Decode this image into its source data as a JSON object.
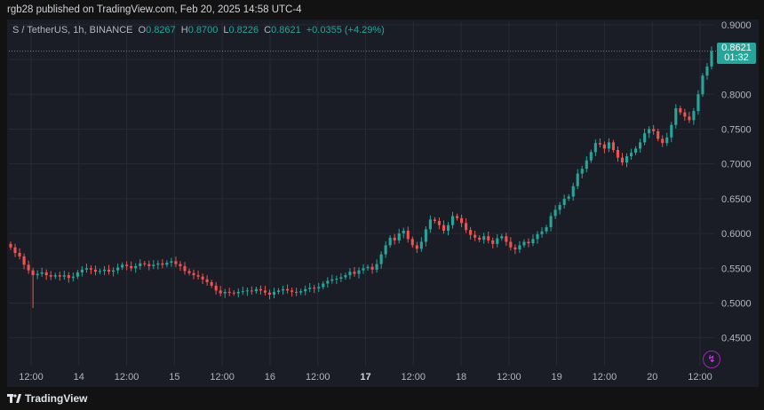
{
  "header": {
    "published": "rgb28 published on TradingView.com, Feb 20, 2025 14:58 UTC-4"
  },
  "legend": {
    "symbol": "S / TetherUS, 1h, BINANCE",
    "o_label": "O",
    "o_value": "0.8267",
    "h_label": "H",
    "h_value": "0.8700",
    "l_label": "L",
    "l_value": "0.8226",
    "c_label": "C",
    "c_value": "0.8621",
    "change": "+0.0355 (+4.29%)"
  },
  "price_tag": {
    "price": "0.8621",
    "countdown": "01:32"
  },
  "footer": {
    "brand": "TradingView"
  },
  "colors": {
    "up": "#26a69a",
    "down": "#ef5350",
    "background": "#1a1d26",
    "grid": "#262a35",
    "text": "#b2b5be"
  },
  "chart_data": {
    "type": "candlestick",
    "ylim": [
      0.41,
      0.905
    ],
    "yticks": [
      "0.9000",
      "0.8500",
      "0.8000",
      "0.7500",
      "0.7000",
      "0.6500",
      "0.6000",
      "0.5500",
      "0.5000",
      "0.4500"
    ],
    "xticks": [
      "12:00",
      "14",
      "12:00",
      "15",
      "12:00",
      "16",
      "12:00",
      "17",
      "12:00",
      "18",
      "12:00",
      "19",
      "12:00",
      "20",
      "12:00"
    ],
    "last_price": 0.8621,
    "closes": [
      0.58,
      0.572,
      0.567,
      0.555,
      0.547,
      0.54,
      0.542,
      0.544,
      0.54,
      0.538,
      0.54,
      0.538,
      0.54,
      0.536,
      0.538,
      0.544,
      0.548,
      0.55,
      0.548,
      0.545,
      0.546,
      0.548,
      0.545,
      0.547,
      0.551,
      0.555,
      0.553,
      0.55,
      0.553,
      0.557,
      0.556,
      0.553,
      0.555,
      0.557,
      0.555,
      0.558,
      0.56,
      0.556,
      0.553,
      0.546,
      0.543,
      0.54,
      0.538,
      0.534,
      0.53,
      0.525,
      0.518,
      0.514,
      0.516,
      0.515,
      0.514,
      0.516,
      0.517,
      0.518,
      0.517,
      0.52,
      0.518,
      0.515,
      0.512,
      0.516,
      0.518,
      0.52,
      0.518,
      0.516,
      0.515,
      0.517,
      0.52,
      0.522,
      0.521,
      0.523,
      0.528,
      0.532,
      0.534,
      0.535,
      0.537,
      0.54,
      0.545,
      0.542,
      0.547,
      0.55,
      0.552,
      0.548,
      0.556,
      0.57,
      0.583,
      0.594,
      0.59,
      0.6,
      0.604,
      0.592,
      0.583,
      0.578,
      0.588,
      0.606,
      0.62,
      0.618,
      0.612,
      0.604,
      0.612,
      0.625,
      0.622,
      0.615,
      0.605,
      0.598,
      0.594,
      0.591,
      0.596,
      0.59,
      0.585,
      0.593,
      0.596,
      0.588,
      0.58,
      0.577,
      0.583,
      0.588,
      0.586,
      0.592,
      0.599,
      0.603,
      0.609,
      0.625,
      0.634,
      0.641,
      0.65,
      0.653,
      0.668,
      0.686,
      0.693,
      0.705,
      0.717,
      0.73,
      0.728,
      0.722,
      0.731,
      0.72,
      0.709,
      0.702,
      0.711,
      0.716,
      0.722,
      0.731,
      0.744,
      0.75,
      0.747,
      0.736,
      0.73,
      0.738,
      0.756,
      0.78,
      0.774,
      0.768,
      0.763,
      0.776,
      0.8,
      0.827,
      0.84,
      0.8621
    ]
  }
}
